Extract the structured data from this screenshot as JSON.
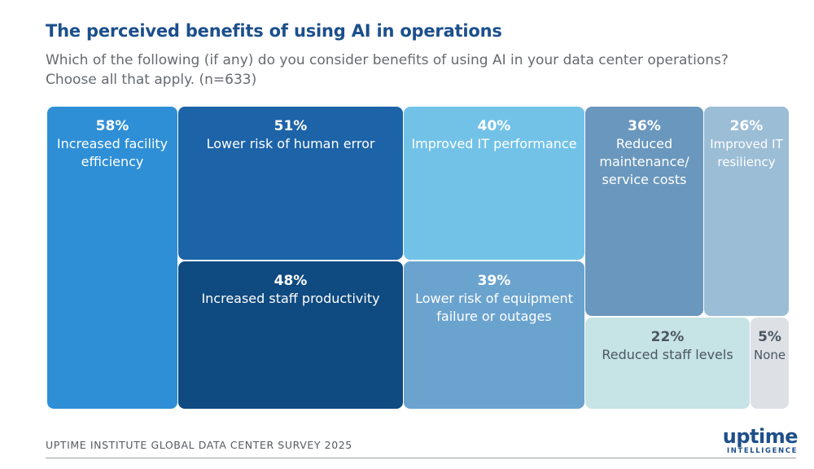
{
  "header": {
    "title": "The perceived benefits of using AI in operations",
    "subtitle": "Which of the following (if any) do you consider benefits of using AI in your data center operations? Choose all that apply. (n=633)"
  },
  "chart_data": {
    "type": "treemap",
    "unit": "%",
    "items": [
      {
        "label": "Increased facility efficiency",
        "value": 58,
        "value_text": "58%",
        "color": "#2e8fd6",
        "text_color": "#ffffff"
      },
      {
        "label": "Lower risk of human error",
        "value": 51,
        "value_text": "51%",
        "color": "#1c63a8",
        "text_color": "#ffffff"
      },
      {
        "label": "Increased staff productivity",
        "value": 48,
        "value_text": "48%",
        "color": "#0f4a80",
        "text_color": "#ffffff"
      },
      {
        "label": "Improved IT performance",
        "value": 40,
        "value_text": "40%",
        "color": "#72c2e8",
        "text_color": "#ffffff"
      },
      {
        "label": "Lower risk of equipment failure or outages",
        "value": 39,
        "value_text": "39%",
        "color": "#6ba3cf",
        "text_color": "#ffffff"
      },
      {
        "label": "Reduced maintenance/ service costs",
        "value": 36,
        "value_text": "36%",
        "color": "#6a97bd",
        "text_color": "#ffffff"
      },
      {
        "label": "Improved IT resiliency",
        "value": 26,
        "value_text": "26%",
        "color": "#9bbdd6",
        "text_color": "#ffffff"
      },
      {
        "label": "Reduced staff levels",
        "value": 22,
        "value_text": "22%",
        "color": "#c6e3e6",
        "text_color": "#4b5660"
      },
      {
        "label": "None",
        "value": 5,
        "value_text": "5%",
        "color": "#dde1e6",
        "text_color": "#4b5660"
      }
    ]
  },
  "footer": {
    "source": "UPTIME INSTITUTE GLOBAL DATA CENTER SURVEY 2025",
    "logo_word": "uptime",
    "logo_sub": "INTELLIGENCE"
  }
}
